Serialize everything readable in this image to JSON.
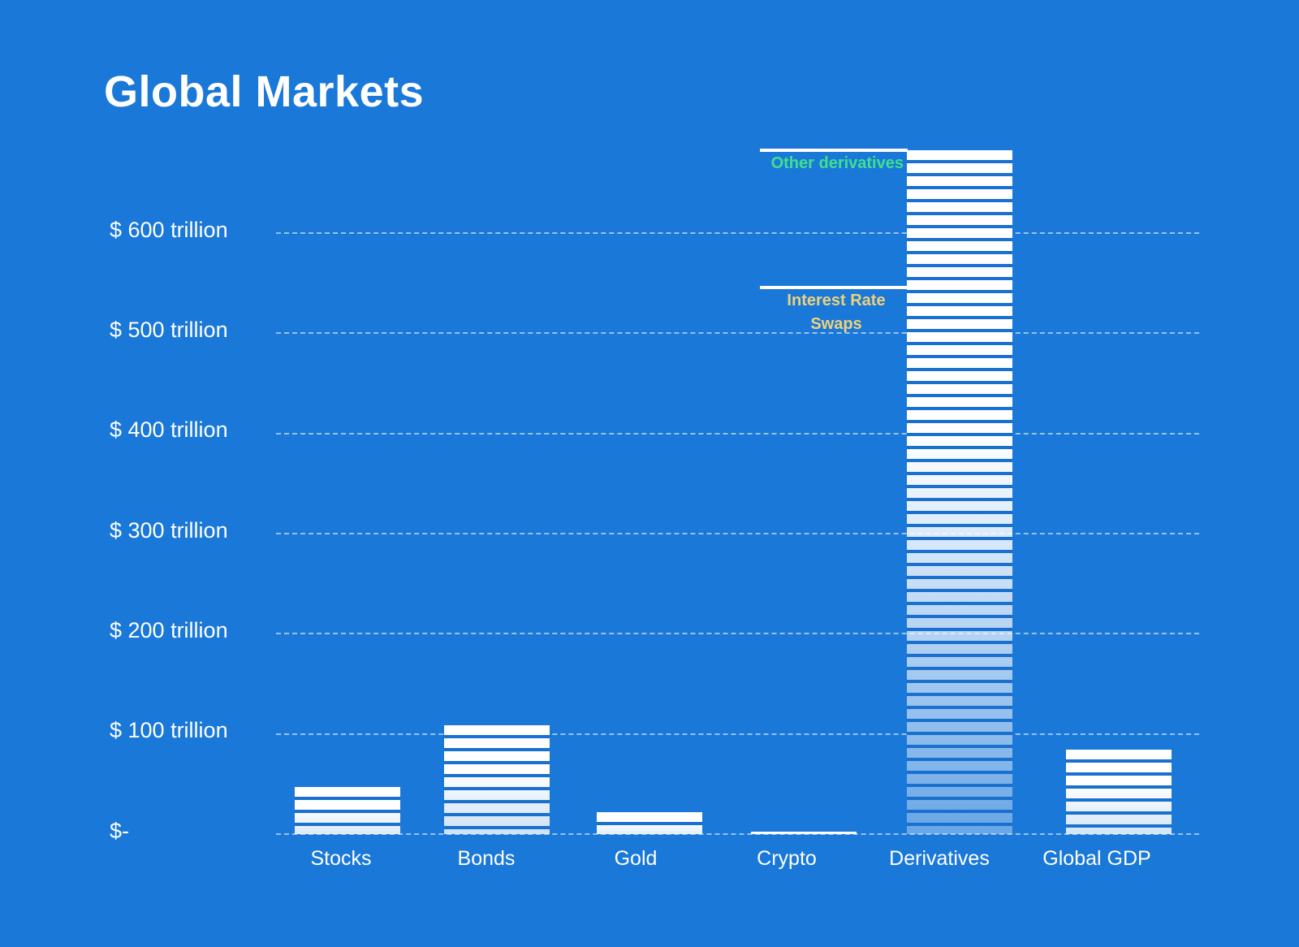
{
  "title": "Global Markets",
  "colors": {
    "background": "#1a78d9",
    "bar_fill": "#ffffff",
    "bar_gap": "#1a70cf",
    "gridline": "rgba(255,255,255,0.55)",
    "text": "#ffffff",
    "annotation_other_derivatives": "#3fe08d",
    "annotation_interest_rate_swaps": "#eed27a"
  },
  "chart_data": {
    "type": "bar",
    "title": "Global Markets",
    "unit": "USD trillions",
    "categories": [
      "Stocks",
      "Bonds",
      "Gold",
      "Crypto",
      "Derivatives",
      "Global GDP"
    ],
    "values": [
      47,
      109,
      22,
      2.5,
      683,
      84
    ],
    "xlabel": "",
    "ylabel": "",
    "ylim": [
      0,
      690
    ],
    "grid": "horizontal-dashed",
    "legend": "none",
    "yticks": [
      {
        "value": 0,
        "label": "$-"
      },
      {
        "value": 100,
        "label": "$ 100 trillion"
      },
      {
        "value": 200,
        "label": "$ 200 trillion"
      },
      {
        "value": 300,
        "label": "$ 300 trillion"
      },
      {
        "value": 400,
        "label": "$ 400 trillion"
      },
      {
        "value": 500,
        "label": "$ 500 trillion"
      },
      {
        "value": 600,
        "label": "$ 600 trillion"
      }
    ],
    "annotations": [
      {
        "id": "other-derivatives",
        "lines": [
          "Other derivatives"
        ],
        "value": 683,
        "color": "#3fe08d",
        "align": "right"
      },
      {
        "id": "interest-rate-swaps",
        "lines": [
          "Interest Rate",
          "Swaps"
        ],
        "value": 546,
        "color": "#eed27a",
        "align": "center"
      }
    ]
  }
}
